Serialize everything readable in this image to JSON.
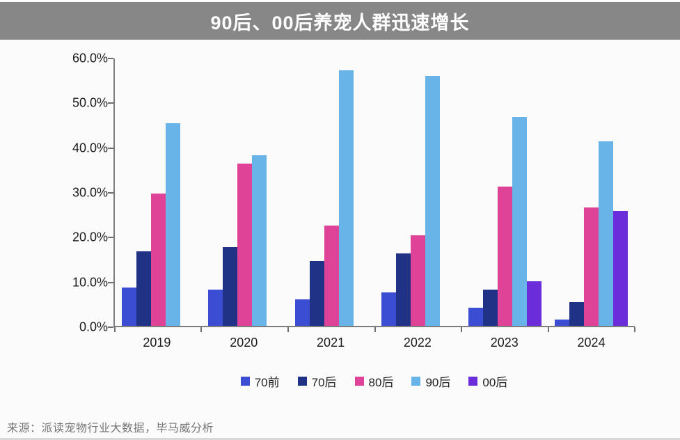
{
  "title": "90后、00后养宠人群迅速增长",
  "source": "来源：派读宠物行业大数据，毕马威分析",
  "colors": {
    "title_band_bg": "#878787",
    "title_text": "#ffffff",
    "page_bg": "#fbfbfc",
    "axis_line": "#7d7d7d",
    "tick": "#6f6f6f",
    "axis_label_text": "#1b1b1b",
    "source_text": "#757575"
  },
  "chart_data": {
    "type": "bar",
    "title": "90后、00后养宠人群迅速增长",
    "categories": [
      "2019",
      "2020",
      "2021",
      "2022",
      "2023",
      "2024"
    ],
    "series": [
      {
        "name": "70前",
        "key": "pre-70s",
        "color": "#3B4ED3",
        "values": [
          8.6,
          8.1,
          5.9,
          7.4,
          4.1,
          1.4
        ]
      },
      {
        "name": "70后",
        "key": "post-70s",
        "color": "#1F3286",
        "values": [
          16.6,
          17.5,
          14.4,
          16.1,
          8.1,
          5.3
        ]
      },
      {
        "name": "80后",
        "key": "post-80s",
        "color": "#DE4398",
        "values": [
          29.5,
          36.2,
          22.4,
          20.2,
          31.1,
          26.5
        ]
      },
      {
        "name": "90后",
        "key": "post-90s",
        "color": "#68B3E8",
        "values": [
          45.2,
          38.1,
          57.0,
          55.8,
          46.7,
          41.2
        ]
      },
      {
        "name": "00后",
        "key": "post-00s",
        "color": "#6B2CDA",
        "values": [
          null,
          null,
          null,
          null,
          10.0,
          25.6
        ]
      }
    ],
    "xlabel": "",
    "ylabel": "",
    "ylim": [
      0,
      60
    ],
    "ytick_step": 10,
    "ytick_labels": [
      "0.0%",
      "10.0%",
      "20.0%",
      "30.0%",
      "40.0%",
      "50.0%",
      "60.0%"
    ],
    "grid": false,
    "legend_position": "bottom"
  }
}
